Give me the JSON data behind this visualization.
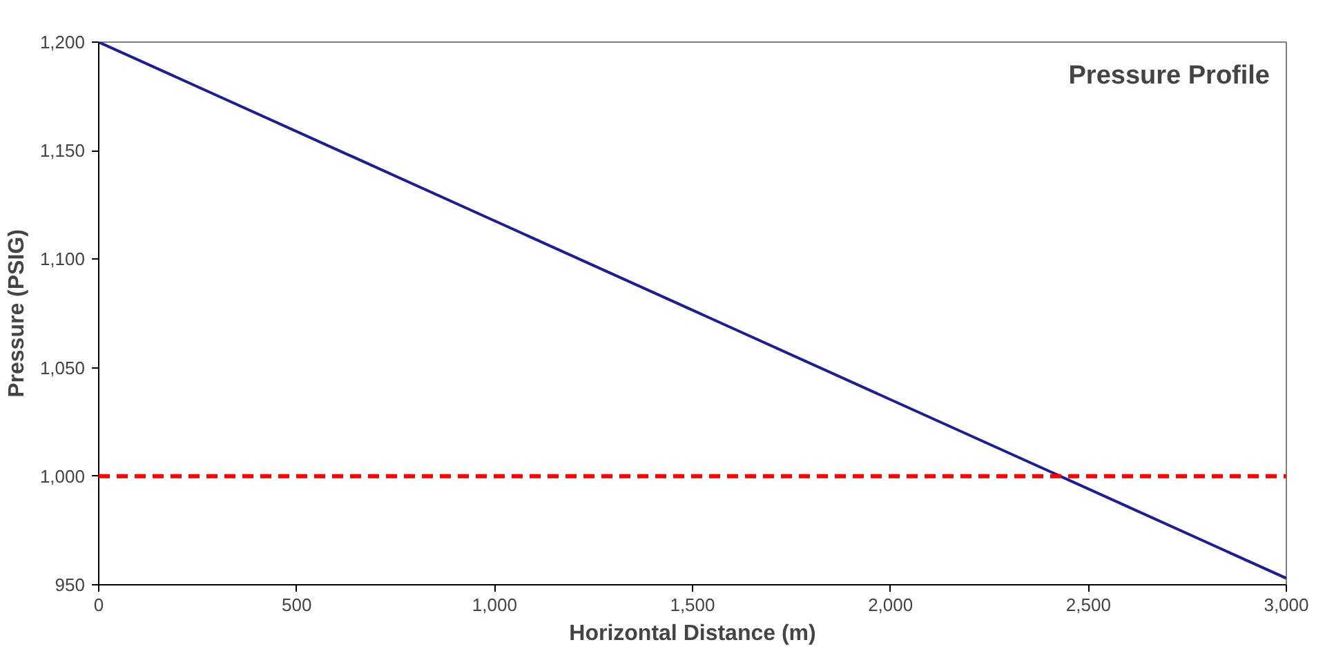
{
  "chart_data": {
    "type": "line",
    "title": "Pressure Profile",
    "xlabel": "Horizontal Distance (m)",
    "ylabel": "Pressure (PSIG)",
    "x": [
      0,
      3000
    ],
    "series": [
      {
        "color": "#1f1f8c",
        "values": [
          1200,
          953
        ]
      }
    ],
    "xlim": [
      0,
      3000
    ],
    "ylim": [
      950,
      1200
    ],
    "xticks": [
      0,
      500,
      {
        "value": 1000,
        "label": "1,000"
      },
      {
        "value": 1500,
        "label": "1,500"
      },
      {
        "value": 2000,
        "label": "2,000"
      },
      {
        "value": 2500,
        "label": "2,500"
      },
      {
        "value": 3000,
        "label": "3,000"
      }
    ],
    "yticks": [
      950,
      {
        "value": 1000,
        "label": "1,000"
      },
      {
        "value": 1050,
        "label": "1,050"
      },
      {
        "value": 1100,
        "label": "1,100"
      },
      {
        "value": 1150,
        "label": "1,150"
      },
      {
        "value": 1200,
        "label": "1,200"
      }
    ],
    "ref_lines": [
      {
        "axis": "y",
        "value": 1000,
        "label": null,
        "color": "#ff0000",
        "line_style": "dashed"
      }
    ],
    "grid": false,
    "marker": "none",
    "line_style": "solid"
  }
}
